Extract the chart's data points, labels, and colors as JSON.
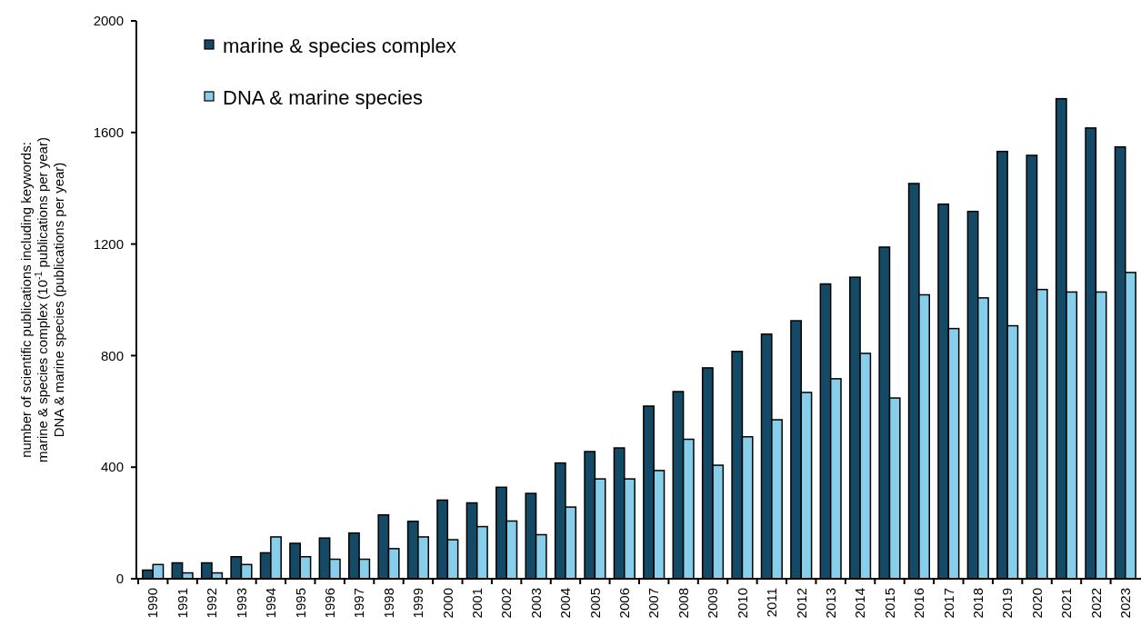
{
  "chart_data": {
    "type": "bar",
    "ylabel": "number of scientific publications including keywords:\nmarine & species complex (10$^{-1}$ publications per year)\nDNA & marine species  (publications per year)",
    "categories": [
      "1990",
      "1991",
      "1992",
      "1993",
      "1994",
      "1995",
      "1996",
      "1997",
      "1998",
      "1999",
      "2000",
      "2001",
      "2002",
      "2003",
      "2004",
      "2005",
      "2006",
      "2007",
      "2008",
      "2009",
      "2010",
      "2011",
      "2012",
      "2013",
      "2014",
      "2015",
      "2016",
      "2017",
      "2018",
      "2019",
      "2020",
      "2021",
      "2022",
      "2023"
    ],
    "series": [
      {
        "name": "marine & species complex",
        "color": "#154a66",
        "values": [
          31,
          57,
          57,
          79,
          93,
          127,
          146,
          164,
          229,
          206,
          282,
          272,
          328,
          306,
          415,
          456,
          469,
          619,
          671,
          756,
          815,
          877,
          925,
          1057,
          1081,
          1189,
          1417,
          1343,
          1317,
          1532,
          1518,
          1721,
          1616,
          1548
        ]
      },
      {
        "name": "DNA & marine species",
        "color": "#87ceeb",
        "values": [
          51,
          21,
          21,
          51,
          150,
          79,
          70,
          70,
          108,
          150,
          140,
          187,
          207,
          158,
          257,
          358,
          358,
          388,
          500,
          407,
          509,
          570,
          668,
          717,
          808,
          648,
          1018,
          897,
          1007,
          907,
          1037,
          1028,
          1028,
          1098
        ]
      }
    ],
    "ylim": [
      0,
      2000
    ],
    "yticks": [
      0,
      400,
      800,
      1200,
      1600,
      2000
    ],
    "grid": false,
    "legend": "top left"
  }
}
